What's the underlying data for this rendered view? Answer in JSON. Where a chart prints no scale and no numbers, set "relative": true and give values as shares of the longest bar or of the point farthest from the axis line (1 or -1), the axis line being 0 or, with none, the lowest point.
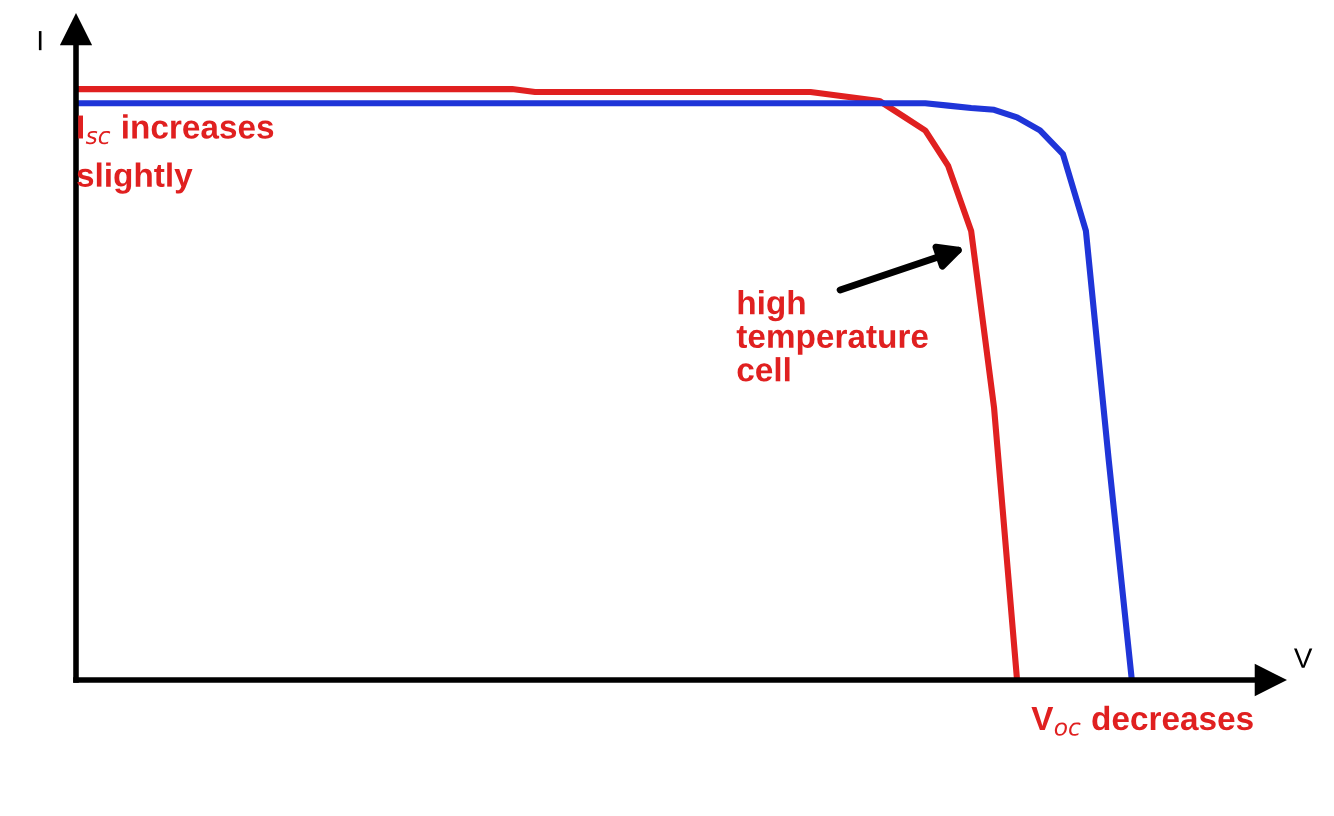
{
  "chart_data": {
    "type": "line",
    "relative": true,
    "xlabel": "V",
    "ylabel": "I",
    "marker": "none",
    "line_style": "solid",
    "annotations": [
      "I$_{sc}$ increases\nslightly",
      "high\ntemperature\ncell",
      "V$_{oc}$ decreases"
    ],
    "categories": [
      null,
      null,
      null,
      null,
      null,
      null,
      null,
      null,
      null,
      null,
      null,
      null,
      null,
      null,
      null,
      null,
      null,
      null,
      null,
      null,
      null,
      null,
      null,
      null,
      null,
      null,
      null,
      null,
      null,
      null,
      null,
      null,
      null,
      null,
      null,
      null,
      null,
      null,
      null,
      null,
      null,
      null,
      null,
      null,
      null,
      null,
      null,
      null,
      null,
      null,
      null
    ],
    "series": [
      {
        "color": "#e02020",
        "values": [
          1,
          1,
          1,
          1,
          1,
          1,
          1,
          1,
          1,
          1,
          1,
          1,
          1,
          1,
          1,
          1,
          1,
          1,
          1,
          1,
          0.995,
          0.995,
          0.995,
          0.995,
          0.995,
          0.995,
          0.995,
          0.995,
          0.995,
          0.995,
          0.995,
          0.995,
          0.995,
          0.99,
          0.985,
          0.98,
          0.955,
          0.93,
          0.87,
          0.76,
          0.46,
          0,
          null,
          null,
          null,
          null,
          null,
          null,
          null,
          null,
          null
        ]
      },
      {
        "color": "#1f35d8",
        "values": [
          0.976,
          0.976,
          0.976,
          0.976,
          0.976,
          0.976,
          0.976,
          0.976,
          0.976,
          0.976,
          0.976,
          0.976,
          0.976,
          0.976,
          0.976,
          0.976,
          0.976,
          0.976,
          0.976,
          0.976,
          0.976,
          0.976,
          0.976,
          0.976,
          0.976,
          0.976,
          0.976,
          0.976,
          0.976,
          0.976,
          0.976,
          0.976,
          0.976,
          0.976,
          0.976,
          0.976,
          0.976,
          0.976,
          0.972,
          0.968,
          0.965,
          0.952,
          0.93,
          0.89,
          0.76,
          0.37,
          0,
          null,
          null,
          null,
          null
        ]
      }
    ]
  }
}
